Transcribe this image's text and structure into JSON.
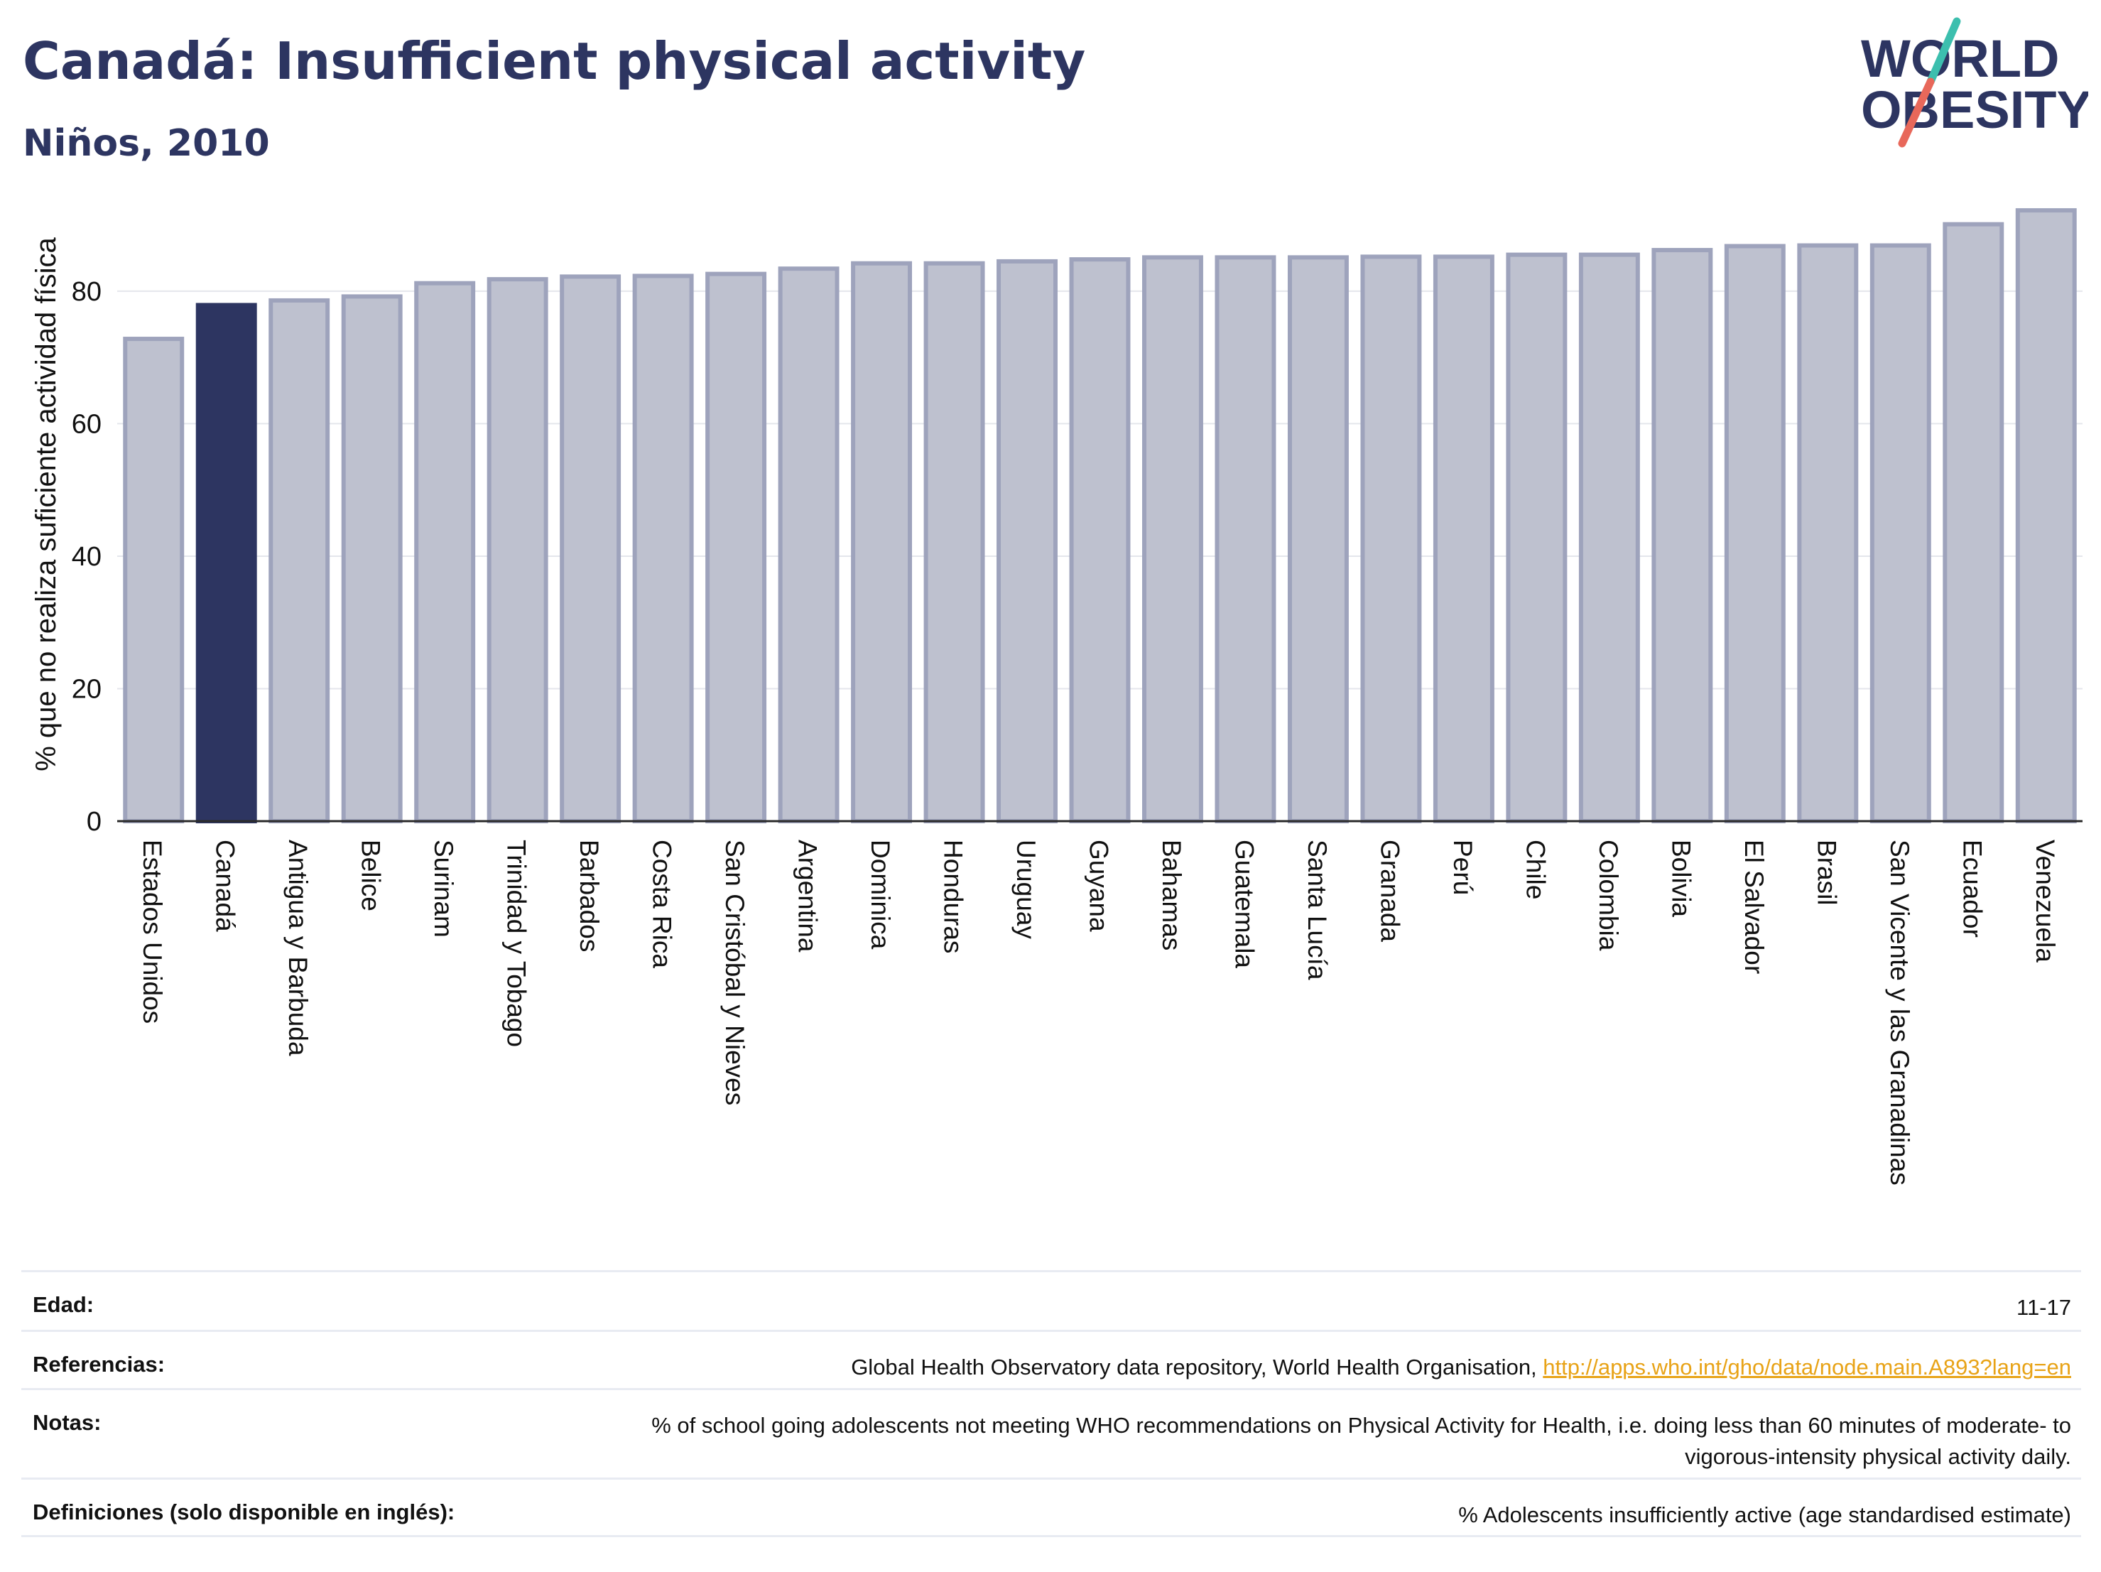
{
  "header": {
    "title": "Canadá: Insufficient physical activity",
    "subtitle": "Niños, 2010"
  },
  "logo": {
    "line1": "WORLD",
    "line2": "OBESITY",
    "icon": "world-obesity-logo"
  },
  "colors": {
    "highlight": "#2d3561",
    "bar": "#bec1cf",
    "bar_edge": "#9ea3bc",
    "text": "#2d3561",
    "link": "#e8a317"
  },
  "chart_data": {
    "type": "bar",
    "ylabel": "% que no realiza suficiente actividad física",
    "ylim": [
      0,
      95
    ],
    "yticks": [
      0,
      20,
      40,
      60,
      80
    ],
    "grid": true,
    "highlight": "Canadá",
    "categories": [
      "Estados Unidos",
      "Canadá",
      "Antigua y Barbuda",
      "Belice",
      "Surinam",
      "Trinidad y Tobago",
      "Barbados",
      "Costa Rica",
      "San Cristóbal y Nieves",
      "Argentina",
      "Dominica",
      "Honduras",
      "Uruguay",
      "Guyana",
      "Bahamas",
      "Guatemala",
      "Santa Lucía",
      "Granada",
      "Perú",
      "Chile",
      "Colombia",
      "Bolivia",
      "El Salvador",
      "Brasil",
      "San Vicente y las Granadinas",
      "Ecuador",
      "Venezuela"
    ],
    "values": [
      72.8,
      77.9,
      78.6,
      79.2,
      81.2,
      81.8,
      82.2,
      82.3,
      82.6,
      83.4,
      84.2,
      84.2,
      84.5,
      84.8,
      85.1,
      85.1,
      85.1,
      85.2,
      85.2,
      85.5,
      85.5,
      86.2,
      86.8,
      86.9,
      86.9,
      90.1,
      92.2
    ]
  },
  "footer": {
    "rows": [
      {
        "label": "Edad:",
        "value": "11-17"
      },
      {
        "label": "Referencias:",
        "value": "Global Health Observatory data repository, World Health Organisation, ",
        "link": "http://apps.who.int/gho/data/node.main.A893?lang=en"
      },
      {
        "label": "Notas:",
        "value": "% of school going adolescents not meeting WHO recommendations on Physical Activity for Health, i.e. doing less than 60 minutes of moderate- to vigorous-intensity physical activity daily."
      },
      {
        "label": "Definiciones (solo disponible en inglés):",
        "value": "% Adolescents insufficiently active (age standardised estimate)"
      }
    ]
  }
}
